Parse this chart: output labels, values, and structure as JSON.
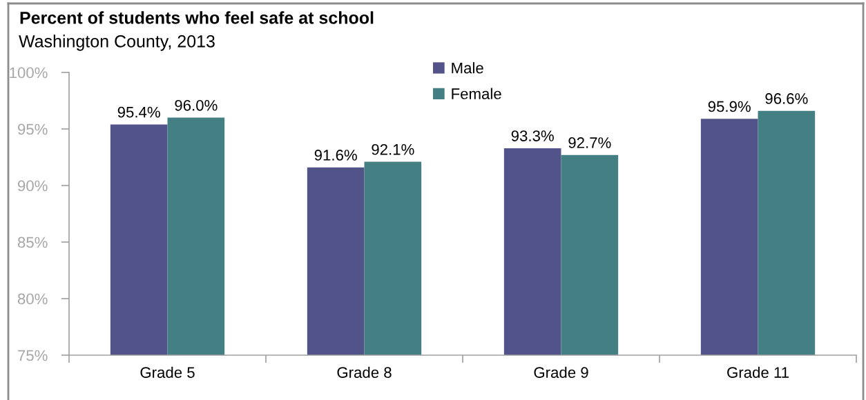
{
  "chart_data": {
    "type": "bar",
    "title": "Percent of students who feel safe at school",
    "subtitle": "Washington County, 2013",
    "categories": [
      "Grade 5",
      "Grade 8",
      "Grade 9",
      "Grade 11"
    ],
    "series": [
      {
        "name": "Male",
        "color": "#525389",
        "values": [
          95.4,
          91.6,
          93.3,
          95.9
        ],
        "value_labels": [
          "95.4%",
          "91.6%",
          "93.3%",
          "95.9%"
        ]
      },
      {
        "name": "Female",
        "color": "#447f84",
        "values": [
          96.0,
          92.1,
          92.7,
          96.6
        ],
        "value_labels": [
          "96.0%",
          "92.1%",
          "92.7%",
          "96.6%"
        ]
      }
    ],
    "ylim": [
      75,
      100
    ],
    "yticks": [
      {
        "value": 75,
        "label": "75%"
      },
      {
        "value": 80,
        "label": "80%"
      },
      {
        "value": 85,
        "label": "85%"
      },
      {
        "value": 90,
        "label": "90%"
      },
      {
        "value": 95,
        "label": "95%"
      },
      {
        "value": 100,
        "label": "100%"
      }
    ],
    "legend": "top"
  }
}
